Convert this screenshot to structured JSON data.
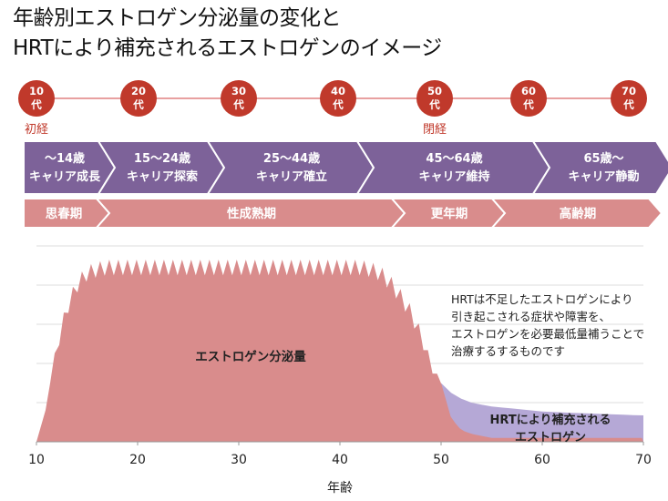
{
  "title": {
    "line1": "年齢別エストロゲン分泌量の変化と",
    "line2": "HRTにより補充されるエストロゲンのイメージ"
  },
  "colors": {
    "accent_red": "#c0392b",
    "timeline_line": "#e8a0a0",
    "career_purple": "#7d6299",
    "life_pink": "#d98c8c",
    "estrogen_fill": "#d98c8c",
    "hrt_fill": "#b5a8d6",
    "grid": "#dddddd"
  },
  "timeline": {
    "decades": [
      {
        "num": "10",
        "unit": "代",
        "event": "初経"
      },
      {
        "num": "20",
        "unit": "代",
        "event": ""
      },
      {
        "num": "30",
        "unit": "代",
        "event": ""
      },
      {
        "num": "40",
        "unit": "代",
        "event": ""
      },
      {
        "num": "50",
        "unit": "代",
        "event": "閉経"
      },
      {
        "num": "60",
        "unit": "代",
        "event": ""
      },
      {
        "num": "70",
        "unit": "代",
        "event": ""
      }
    ]
  },
  "career_stages": [
    {
      "age": "～14歳",
      "label": "キャリア成長"
    },
    {
      "age": "15～24歳",
      "label": "キャリア探索"
    },
    {
      "age": "25～44歳",
      "label": "キャリア確立"
    },
    {
      "age": "45～64歳",
      "label": "キャリア維持"
    },
    {
      "age": "65歳～",
      "label": "キャリア静動"
    }
  ],
  "life_stages": [
    {
      "label": "思春期"
    },
    {
      "label": "性成熟期"
    },
    {
      "label": "更年期"
    },
    {
      "label": "高齢期"
    }
  ],
  "chart_data": {
    "type": "area",
    "xlabel": "年齢",
    "xlim": [
      10,
      70
    ],
    "ylim": [
      0,
      100
    ],
    "x_ticks": [
      10,
      20,
      30,
      40,
      50,
      60,
      70
    ],
    "grid": true,
    "annotation": {
      "line1": "HRTは不足したエストロゲンにより",
      "line2": "引き起こされる症状や障害を、",
      "line3": "エストロゲンを必要最低量補うことで",
      "line4": "治療するするものです"
    },
    "series": [
      {
        "name": "エストロゲン分泌量",
        "x": [
          10,
          11,
          12,
          13,
          14,
          15,
          16,
          17,
          18,
          19,
          20,
          21,
          22,
          23,
          24,
          25,
          26,
          27,
          28,
          29,
          30,
          31,
          32,
          33,
          34,
          35,
          36,
          37,
          38,
          39,
          40,
          41,
          42,
          43,
          44,
          45,
          46,
          47,
          48,
          49,
          50,
          51,
          52,
          53,
          54,
          55,
          56,
          57,
          58,
          59,
          60,
          61,
          62,
          63,
          64,
          65,
          66,
          67,
          68,
          69,
          70
        ],
        "y": [
          0,
          18,
          52,
          72,
          84,
          90,
          92,
          93,
          93,
          93,
          93,
          93,
          93,
          93,
          93,
          93,
          93,
          93,
          93,
          93,
          93,
          93,
          93,
          93,
          93,
          93,
          93,
          93,
          93,
          93,
          93,
          93,
          93,
          92,
          90,
          85,
          78,
          70,
          58,
          42,
          30,
          12,
          6,
          4,
          3,
          2,
          2,
          2,
          2,
          2,
          2,
          2,
          2,
          2,
          2,
          2,
          2,
          2,
          2,
          2,
          2
        ]
      },
      {
        "name": "HRTにより補充されるエストロゲン",
        "x": [
          50,
          51,
          52,
          53,
          54,
          55,
          56,
          57,
          58,
          59,
          60,
          61,
          62,
          63,
          64,
          65,
          66,
          67,
          68,
          69,
          70
        ],
        "y": [
          30,
          25,
          22,
          20,
          19,
          18,
          17.5,
          17,
          16.5,
          16,
          15.5,
          15.2,
          15,
          14.8,
          14.6,
          14.4,
          14.2,
          14,
          13.8,
          13.6,
          13.5
        ]
      }
    ],
    "spike_height": 8
  }
}
